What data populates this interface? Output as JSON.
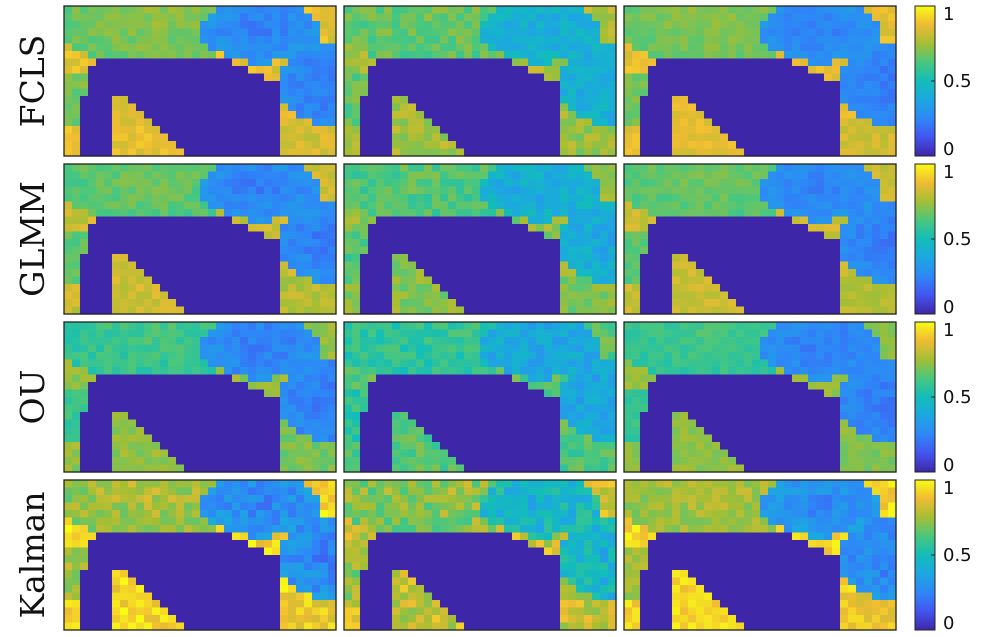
{
  "figure": {
    "rows": [
      {
        "label": "FCLS"
      },
      {
        "label": "GLMM"
      },
      {
        "label": "OU"
      },
      {
        "label": "Kalman"
      }
    ],
    "colorbar": {
      "ticks": [
        {
          "value": 1,
          "label": "1"
        },
        {
          "value": 0.5,
          "label": "0.5"
        },
        {
          "value": 0,
          "label": "0"
        }
      ]
    }
  },
  "chart_data": {
    "type": "heatmap",
    "title": "",
    "layout": "4 rows x 3 columns of abundance maps, one colorbar per row",
    "rows": [
      "FCLS",
      "GLMM",
      "OU",
      "Kalman"
    ],
    "columns": 3,
    "colormap": "parula",
    "clim": [
      0,
      1
    ],
    "colorbar_ticks": [
      0,
      0.5,
      1
    ],
    "axes_ticks": "none",
    "grid": false
  }
}
